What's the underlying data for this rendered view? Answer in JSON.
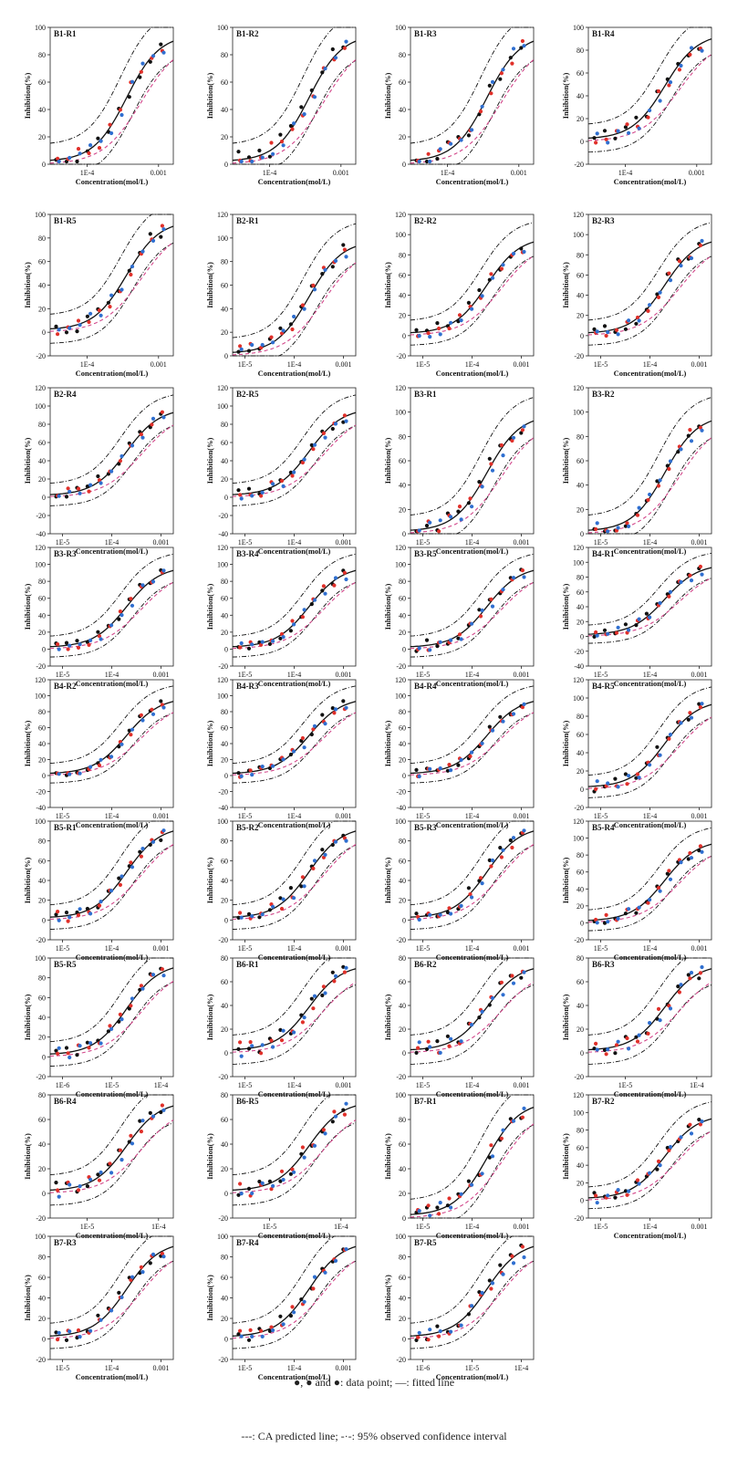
{
  "chart_data": {
    "type": "scatter",
    "colors": {
      "black": "#111111",
      "red": "#e0302a",
      "blue": "#2f6fd0",
      "fit": "#111111",
      "ca": "#d2468a",
      "ci": "#111111"
    },
    "series_legend": [
      "data point",
      "fitted line",
      "CA predicted line",
      "95% observed confidence interval"
    ],
    "panels": [
      {
        "label": "B1-R1",
        "ylabel": "Inhibition(%)",
        "xlabel": "Concentration(mol/L)",
        "yticks": [
          "0",
          "20",
          "40",
          "60",
          "80",
          "100"
        ],
        "xticks": [
          "1E-4",
          "0.001"
        ]
      },
      {
        "label": "B1-R2",
        "ylabel": "Inhibition(%)",
        "xlabel": "Concentration(mol/L)",
        "yticks": [
          "0",
          "20",
          "40",
          "60",
          "80",
          "100"
        ],
        "xticks": [
          "1E-4",
          "0.001"
        ]
      },
      {
        "label": "B1-R3",
        "ylabel": "Inhibition(%)",
        "xlabel": "Concentration(mol/L)",
        "yticks": [
          "0",
          "20",
          "40",
          "60",
          "80",
          "100"
        ],
        "xticks": [
          "1E-4",
          "0.001"
        ]
      },
      {
        "label": "B1-R4",
        "ylabel": "Inhibition(%)",
        "xlabel": "Concentration(mol/L)",
        "yticks": [
          "-20",
          "0",
          "20",
          "40",
          "60",
          "80",
          "100"
        ],
        "xticks": [
          "1E-4",
          "0.001"
        ]
      },
      {
        "label": "B1-R5",
        "ylabel": "Inhibition(%)",
        "xlabel": "Concentration(mol/L)",
        "yticks": [
          "-20",
          "0",
          "20",
          "40",
          "60",
          "80",
          "100"
        ],
        "xticks": [
          "1E-4",
          "0.001"
        ]
      },
      {
        "label": "B2-R1",
        "ylabel": "Inhibition(%)",
        "xlabel": "Concentration(mol/L)",
        "yticks": [
          "0",
          "20",
          "40",
          "60",
          "80",
          "100",
          "120"
        ],
        "xticks": [
          "1E-5",
          "1E-4",
          "0.001"
        ]
      },
      {
        "label": "B2-R2",
        "ylabel": "Inhibition(%)",
        "xlabel": "Concentration(mol/L)",
        "yticks": [
          "-20",
          "0",
          "20",
          "40",
          "60",
          "80",
          "100",
          "120"
        ],
        "xticks": [
          "1E-5",
          "1E-4",
          "0.001"
        ]
      },
      {
        "label": "B2-R3",
        "ylabel": "Inhibition(%)",
        "xlabel": "Concentration(mol/L)",
        "yticks": [
          "-20",
          "0",
          "20",
          "40",
          "60",
          "80",
          "100",
          "120"
        ],
        "xticks": [
          "1E-5",
          "1E-4",
          "0.001"
        ]
      },
      {
        "label": "B2-R4",
        "ylabel": "Inhibition(%)",
        "xlabel": "Concentration(mol/L)",
        "yticks": [
          "-40",
          "-20",
          "0",
          "20",
          "40",
          "60",
          "80",
          "100",
          "120"
        ],
        "xticks": [
          "1E-5",
          "1E-4",
          "0.001"
        ]
      },
      {
        "label": "B2-R5",
        "ylabel": "Inhibition(%)",
        "xlabel": "Concentration(mol/L)",
        "yticks": [
          "-40",
          "-20",
          "0",
          "20",
          "40",
          "60",
          "80",
          "100",
          "120"
        ],
        "xticks": [
          "1E-5",
          "1E-4",
          "0.001"
        ]
      },
      {
        "label": "B3-R1",
        "ylabel": "Inhibition(%)",
        "xlabel": "Concentration(mol/L)",
        "yticks": [
          "0",
          "20",
          "40",
          "60",
          "80",
          "100",
          "120"
        ],
        "xticks": [
          "1E-5",
          "1E-4",
          "0.001"
        ]
      },
      {
        "label": "B3-R2",
        "ylabel": "Inhibition(%)",
        "xlabel": "Concentration(mol/L)",
        "yticks": [
          "0",
          "20",
          "40",
          "60",
          "80",
          "100",
          "120"
        ],
        "xticks": [
          "1E-5",
          "1E-4",
          "0.001"
        ]
      },
      {
        "label": "B3-R3",
        "ylabel": "Inhibition(%)",
        "xlabel": "Concentration(mol/L)",
        "yticks": [
          "-20",
          "0",
          "20",
          "40",
          "60",
          "80",
          "100",
          "120"
        ],
        "xticks": [
          "1E-5",
          "1E-4",
          "0.001"
        ]
      },
      {
        "label": "B3-R4",
        "ylabel": "Inhibition(%)",
        "xlabel": "Concentration(mol/L)",
        "yticks": [
          "-20",
          "0",
          "20",
          "40",
          "60",
          "80",
          "100",
          "120"
        ],
        "xticks": [
          "1E-5",
          "1E-4",
          "0.001"
        ]
      },
      {
        "label": "B3-R5",
        "ylabel": "Inhibition(%)",
        "xlabel": "Concentration(mol/L)",
        "yticks": [
          "-20",
          "0",
          "20",
          "40",
          "60",
          "80",
          "100",
          "120"
        ],
        "xticks": [
          "1E-5",
          "1E-4",
          "0.001"
        ]
      },
      {
        "label": "B4-R1",
        "ylabel": "Inhibition(%)",
        "xlabel": "Concentration(mol/L)",
        "yticks": [
          "-40",
          "-20",
          "0",
          "20",
          "40",
          "60",
          "80",
          "100",
          "120"
        ],
        "xticks": [
          "1E-5",
          "1E-4",
          "0.001"
        ]
      },
      {
        "label": "B4-R2",
        "ylabel": "Inhibition(%)",
        "xlabel": "Concentration(mol/L)",
        "yticks": [
          "-40",
          "-20",
          "0",
          "20",
          "40",
          "60",
          "80",
          "100",
          "120"
        ],
        "xticks": [
          "1E-5",
          "1E-4",
          "0.001"
        ]
      },
      {
        "label": "B4-R3",
        "ylabel": "Inhibition(%)",
        "xlabel": "Concentration(mol/L)",
        "yticks": [
          "-40",
          "-20",
          "0",
          "20",
          "40",
          "60",
          "80",
          "100",
          "120"
        ],
        "xticks": [
          "1E-5",
          "1E-4",
          "0.001"
        ]
      },
      {
        "label": "B4-R4",
        "ylabel": "Inhibition(%)",
        "xlabel": "Concentration(mol/L)",
        "yticks": [
          "-40",
          "-20",
          "0",
          "20",
          "40",
          "60",
          "80",
          "100",
          "120"
        ],
        "xticks": [
          "1E-5",
          "1E-4",
          "0.001"
        ]
      },
      {
        "label": "B4-R5",
        "ylabel": "Inhibition(%)",
        "xlabel": "Concentration(mol/L)",
        "yticks": [
          "-20",
          "0",
          "20",
          "40",
          "60",
          "80",
          "100",
          "120"
        ],
        "xticks": [
          "1E-5",
          "1E-4",
          "0.001"
        ]
      },
      {
        "label": "B5-R1",
        "ylabel": "Inhibition(%)",
        "xlabel": "Concentration(mol/L)",
        "yticks": [
          "-20",
          "0",
          "20",
          "40",
          "60",
          "80",
          "100"
        ],
        "xticks": [
          "1E-5",
          "1E-4",
          "0.001"
        ]
      },
      {
        "label": "B5-R2",
        "ylabel": "Inhibition(%)",
        "xlabel": "Concentration(mol/L)",
        "yticks": [
          "-20",
          "0",
          "20",
          "40",
          "60",
          "80",
          "100"
        ],
        "xticks": [
          "1E-5",
          "1E-4",
          "0.001"
        ]
      },
      {
        "label": "B5-R3",
        "ylabel": "Inhibition(%)",
        "xlabel": "Concentration(mol/L)",
        "yticks": [
          "-20",
          "0",
          "20",
          "40",
          "60",
          "80",
          "100"
        ],
        "xticks": [
          "1E-5",
          "1E-4",
          "0.001"
        ]
      },
      {
        "label": "B5-R4",
        "ylabel": "Inhibition(%)",
        "xlabel": "Concentration(mol/L)",
        "yticks": [
          "-20",
          "0",
          "20",
          "40",
          "60",
          "80",
          "100",
          "120"
        ],
        "xticks": [
          "1E-5",
          "1E-4",
          "0.001"
        ]
      },
      {
        "label": "B5-R5",
        "ylabel": "Inhibition(%)",
        "xlabel": "Concentration(mol/L)",
        "yticks": [
          "-20",
          "0",
          "20",
          "40",
          "60",
          "80",
          "100"
        ],
        "xticks": [
          "1E-6",
          "1E-5",
          "1E-4"
        ]
      },
      {
        "label": "B6-R1",
        "ylabel": "Inhibition(%)",
        "xlabel": "Concentration(mol/L)",
        "yticks": [
          "-20",
          "0",
          "20",
          "40",
          "60",
          "80"
        ],
        "xticks": [
          "1E-5",
          "1E-4",
          "0.001"
        ]
      },
      {
        "label": "B6-R2",
        "ylabel": "Inhibition(%)",
        "xlabel": "Concentration(mol/L)",
        "yticks": [
          "-20",
          "0",
          "20",
          "40",
          "60",
          "80"
        ],
        "xticks": [
          "1E-5",
          "1E-4",
          "0.001"
        ]
      },
      {
        "label": "B6-R3",
        "ylabel": "Inhibition(%)",
        "xlabel": "Concentration(mol/L)",
        "yticks": [
          "-20",
          "0",
          "20",
          "40",
          "60",
          "80"
        ],
        "xticks": [
          "1E-5",
          "1E-4"
        ]
      },
      {
        "label": "B6-R4",
        "ylabel": "Inhibition(%)",
        "xlabel": "Concentration(mol/L)",
        "yticks": [
          "-20",
          "0",
          "20",
          "40",
          "60",
          "80"
        ],
        "xticks": [
          "1E-5",
          "1E-4"
        ]
      },
      {
        "label": "B6-R5",
        "ylabel": "Inhibition(%)",
        "xlabel": "Concentration(mol/L)",
        "yticks": [
          "-20",
          "0",
          "20",
          "40",
          "60",
          "80"
        ],
        "xticks": [
          "1E-5",
          "1E-4"
        ]
      },
      {
        "label": "B7-R1",
        "ylabel": "Inhibition(%)",
        "xlabel": "Concentration(mol/L)",
        "yticks": [
          "0",
          "20",
          "40",
          "60",
          "80",
          "100"
        ],
        "xticks": [
          "1E-5",
          "1E-4",
          "0.001"
        ]
      },
      {
        "label": "B7-R2",
        "ylabel": "Inhibition(%)",
        "xlabel": "Concentration(mol/L)",
        "yticks": [
          "-20",
          "0",
          "20",
          "40",
          "60",
          "80",
          "100",
          "120"
        ],
        "xticks": [
          "1E-5",
          "1E-4",
          "0.001"
        ]
      },
      {
        "label": "B7-R3",
        "ylabel": "Inhibition(%)",
        "xlabel": "Concentration(mol/L)",
        "yticks": [
          "-20",
          "0",
          "20",
          "40",
          "60",
          "80",
          "100"
        ],
        "xticks": [
          "1E-5",
          "1E-4",
          "0.001"
        ]
      },
      {
        "label": "B7-R4",
        "ylabel": "Inhibition(%)",
        "xlabel": "Concentration(mol/L)",
        "yticks": [
          "-20",
          "0",
          "20",
          "40",
          "60",
          "80",
          "100"
        ],
        "xticks": [
          "1E-5",
          "1E-4",
          "0.001"
        ]
      },
      {
        "label": "B7-R5",
        "ylabel": "Inhibition(%)",
        "xlabel": "Concentration(mol/L)",
        "yticks": [
          "-20",
          "0",
          "20",
          "40",
          "60",
          "80",
          "100"
        ],
        "xticks": [
          "1E-6",
          "1E-5",
          "1E-4"
        ]
      }
    ]
  },
  "legend": {
    "line1": "●, ● and ●: data point; —: fitted line",
    "line2": "---: CA predicted line; -·-: 95% observed confidence interval"
  }
}
